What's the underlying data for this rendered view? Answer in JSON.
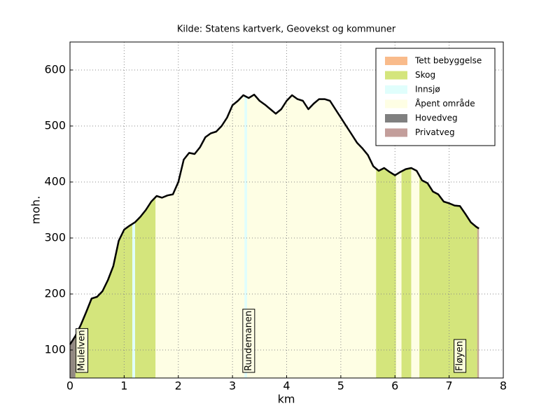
{
  "chart_data": {
    "type": "area-profile",
    "title": "Kilde: Statens kartverk, Geovekst og kommuner",
    "xlabel": "km",
    "ylabel": "moh.",
    "xlim": [
      0,
      8
    ],
    "ylim": [
      50,
      650
    ],
    "xticks": [
      0,
      1,
      2,
      3,
      4,
      5,
      6,
      7,
      8
    ],
    "yticks": [
      100,
      200,
      300,
      400,
      500,
      600
    ],
    "grid": true,
    "legend": "upper right",
    "line_color": "#000000",
    "x": [
      0,
      0.1,
      0.2,
      0.3,
      0.4,
      0.5,
      0.6,
      0.7,
      0.8,
      0.9,
      1.0,
      1.1,
      1.2,
      1.3,
      1.4,
      1.5,
      1.6,
      1.7,
      1.8,
      1.9,
      2.0,
      2.1,
      2.2,
      2.3,
      2.4,
      2.5,
      2.6,
      2.7,
      2.8,
      2.9,
      3.0,
      3.1,
      3.2,
      3.3,
      3.4,
      3.5,
      3.6,
      3.7,
      3.8,
      3.9,
      4.0,
      4.1,
      4.2,
      4.3,
      4.4,
      4.5,
      4.6,
      4.7,
      4.8,
      4.9,
      5.0,
      5.1,
      5.2,
      5.3,
      5.4,
      5.5,
      5.6,
      5.7,
      5.8,
      5.9,
      6.0,
      6.1,
      6.2,
      6.3,
      6.4,
      6.5,
      6.6,
      6.7,
      6.8,
      6.9,
      7.0,
      7.1,
      7.2,
      7.3,
      7.4,
      7.5,
      7.55
    ],
    "values": [
      110,
      125,
      145,
      168,
      192,
      195,
      205,
      225,
      250,
      295,
      315,
      322,
      328,
      338,
      350,
      365,
      375,
      372,
      376,
      378,
      400,
      440,
      452,
      450,
      462,
      480,
      487,
      490,
      500,
      515,
      537,
      545,
      555,
      550,
      556,
      545,
      538,
      530,
      522,
      530,
      545,
      555,
      548,
      545,
      530,
      540,
      548,
      548,
      545,
      530,
      515,
      500,
      485,
      470,
      460,
      448,
      428,
      420,
      425,
      418,
      412,
      418,
      423,
      425,
      420,
      403,
      398,
      383,
      378,
      365,
      362,
      358,
      357,
      343,
      328,
      320,
      317
    ],
    "series": [
      {
        "name": "Tett bebyggelse",
        "color": "#f9bb8b",
        "ranges": [
          [
            0,
            0.1
          ]
        ]
      },
      {
        "name": "Skog",
        "color": "#d4e57c",
        "ranges": [
          [
            0.1,
            1.15
          ],
          [
            1.2,
            1.58
          ],
          [
            5.65,
            6.02
          ],
          [
            6.12,
            6.3
          ],
          [
            6.45,
            7.55
          ]
        ]
      },
      {
        "name": "Innsjø",
        "color": "#e0fefc",
        "ranges": [
          [
            1.15,
            1.2
          ],
          [
            3.22,
            3.27
          ]
        ]
      },
      {
        "name": "Åpent område",
        "color": "#fefee4",
        "ranges": [
          [
            1.58,
            3.22
          ],
          [
            3.27,
            5.65
          ],
          [
            6.02,
            6.12
          ],
          [
            6.3,
            6.45
          ]
        ]
      },
      {
        "name": "Hovedveg",
        "color": "#808080",
        "ranges": [
          [
            0,
            0.1
          ]
        ]
      },
      {
        "name": "Privatveg",
        "color": "#c39e9b",
        "ranges": [
          [
            7.52,
            7.55
          ]
        ]
      }
    ],
    "annotations": [
      {
        "text": "Mulelven",
        "x": 0.22
      },
      {
        "text": "Rundemanen",
        "x": 3.3
      },
      {
        "text": "Fløyen",
        "x": 7.2
      }
    ]
  }
}
